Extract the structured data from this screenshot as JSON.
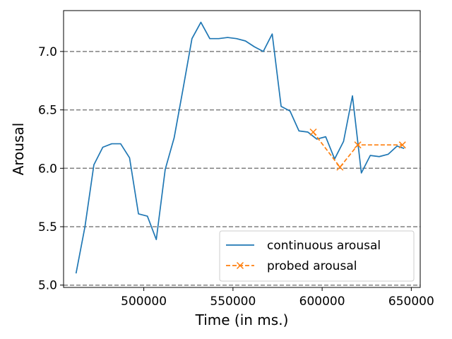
{
  "chart_data": {
    "type": "line",
    "title": "",
    "xlabel": "Time (in ms.)",
    "ylabel": "Arousal",
    "xlim": [
      455000,
      655000
    ],
    "ylim": [
      4.98,
      7.35
    ],
    "x_ticks": [
      500000,
      550000,
      600000,
      650000
    ],
    "x_tick_labels": [
      "500000",
      "550000",
      "600000",
      "650000"
    ],
    "y_ticks": [
      5.0,
      5.5,
      6.0,
      6.5,
      7.0
    ],
    "y_tick_labels": [
      "5.0",
      "5.5",
      "6.0",
      "6.5",
      "7.0"
    ],
    "grid": "horizontal dashed",
    "legend_position": "lower-right",
    "series": [
      {
        "name": "continuous arousal",
        "color": "#1f77b4",
        "style": "solid",
        "marker": "none",
        "x": [
          462000,
          467000,
          472000,
          477000,
          482000,
          487000,
          492000,
          497000,
          502000,
          507000,
          512000,
          517000,
          522000,
          527000,
          532000,
          537000,
          542000,
          547000,
          552000,
          557000,
          562000,
          567000,
          572000,
          577000,
          582000,
          587000,
          592000,
          597000,
          602000,
          607000,
          612000,
          617000,
          622000,
          627000,
          632000,
          637000,
          642000,
          646000
        ],
        "y": [
          5.1,
          5.5,
          6.03,
          6.18,
          6.21,
          6.21,
          6.09,
          5.61,
          5.59,
          5.39,
          5.99,
          6.26,
          6.68,
          7.11,
          7.25,
          7.11,
          7.11,
          7.12,
          7.11,
          7.09,
          7.04,
          7.0,
          7.15,
          6.53,
          6.49,
          6.32,
          6.31,
          6.25,
          6.27,
          6.08,
          6.23,
          6.62,
          5.96,
          6.11,
          6.1,
          6.12,
          6.19,
          6.17
        ]
      },
      {
        "name": "probed arousal",
        "color": "#ff7f0e",
        "style": "dashed",
        "marker": "x",
        "x": [
          595000,
          610000,
          620000,
          645000
        ],
        "y": [
          6.31,
          6.01,
          6.2,
          6.2
        ]
      }
    ]
  }
}
